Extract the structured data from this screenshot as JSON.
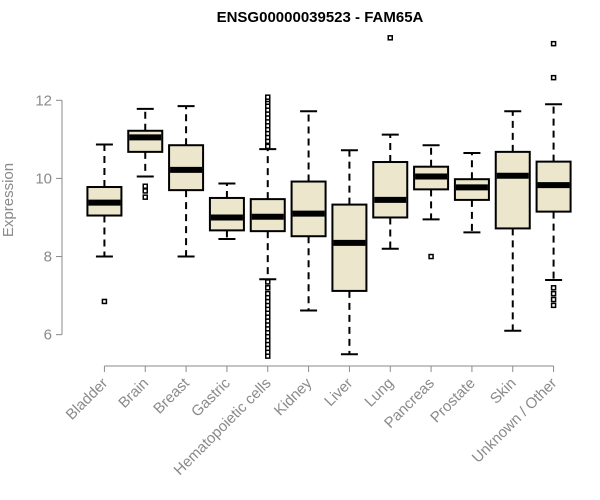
{
  "chart_data": {
    "type": "boxplot",
    "title": "ENSG00000039523 - FAM65A",
    "xlabel": "",
    "ylabel": "Expression",
    "ylim": [
      5.3,
      13.8
    ],
    "yticks": [
      6,
      8,
      10,
      12
    ],
    "colors": {
      "box_fill": "#ece6cc",
      "box_stroke": "#000000",
      "axis": "#8a8a8a"
    },
    "categories": [
      "Bladder",
      "Brain",
      "Breast",
      "Gastric",
      "Hematopoietic cells",
      "Kidney",
      "Liver",
      "Lung",
      "Pancreas",
      "Prostate",
      "Skin",
      "Unknown / Other"
    ],
    "boxes": [
      {
        "q1": 9.05,
        "median": 9.38,
        "q3": 9.78,
        "whisker_low": 8.0,
        "whisker_high": 10.87,
        "outliers": [
          6.85
        ]
      },
      {
        "q1": 10.68,
        "median": 11.05,
        "q3": 11.22,
        "whisker_low": 10.05,
        "whisker_high": 11.78,
        "outliers": [
          9.52,
          9.68,
          9.8
        ]
      },
      {
        "q1": 9.7,
        "median": 10.22,
        "q3": 10.85,
        "whisker_low": 8.0,
        "whisker_high": 11.85,
        "outliers": []
      },
      {
        "q1": 8.67,
        "median": 9.0,
        "q3": 9.5,
        "whisker_low": 8.45,
        "whisker_high": 9.87,
        "outliers": []
      },
      {
        "q1": 8.65,
        "median": 9.02,
        "q3": 9.47,
        "whisker_low": 7.42,
        "whisker_high": 10.75,
        "outliers": [
          5.45,
          5.55,
          5.65,
          5.75,
          5.85,
          5.95,
          6.05,
          6.15,
          6.25,
          6.35,
          6.45,
          6.55,
          6.65,
          6.75,
          6.85,
          6.95,
          7.05,
          7.2,
          7.35,
          10.82,
          10.95,
          11.05,
          11.15,
          11.25,
          11.35,
          11.45,
          11.55,
          11.65,
          11.75,
          11.85,
          11.95,
          12.02,
          12.08
        ]
      },
      {
        "q1": 8.52,
        "median": 9.1,
        "q3": 9.92,
        "whisker_low": 6.62,
        "whisker_high": 11.72,
        "outliers": []
      },
      {
        "q1": 7.12,
        "median": 8.35,
        "q3": 9.33,
        "whisker_low": 5.5,
        "whisker_high": 10.72,
        "outliers": []
      },
      {
        "q1": 9.0,
        "median": 9.45,
        "q3": 10.42,
        "whisker_low": 8.2,
        "whisker_high": 11.12,
        "outliers": [
          13.6
        ]
      },
      {
        "q1": 9.72,
        "median": 10.05,
        "q3": 10.3,
        "whisker_low": 8.95,
        "whisker_high": 10.85,
        "outliers": [
          8.0
        ]
      },
      {
        "q1": 9.45,
        "median": 9.77,
        "q3": 9.98,
        "whisker_low": 8.62,
        "whisker_high": 10.65,
        "outliers": []
      },
      {
        "q1": 8.72,
        "median": 10.07,
        "q3": 10.68,
        "whisker_low": 6.1,
        "whisker_high": 11.72,
        "outliers": []
      },
      {
        "q1": 9.15,
        "median": 9.83,
        "q3": 10.43,
        "whisker_low": 7.4,
        "whisker_high": 11.9,
        "outliers": [
          6.75,
          6.9,
          7.05,
          7.2,
          12.58,
          13.45
        ]
      }
    ]
  }
}
